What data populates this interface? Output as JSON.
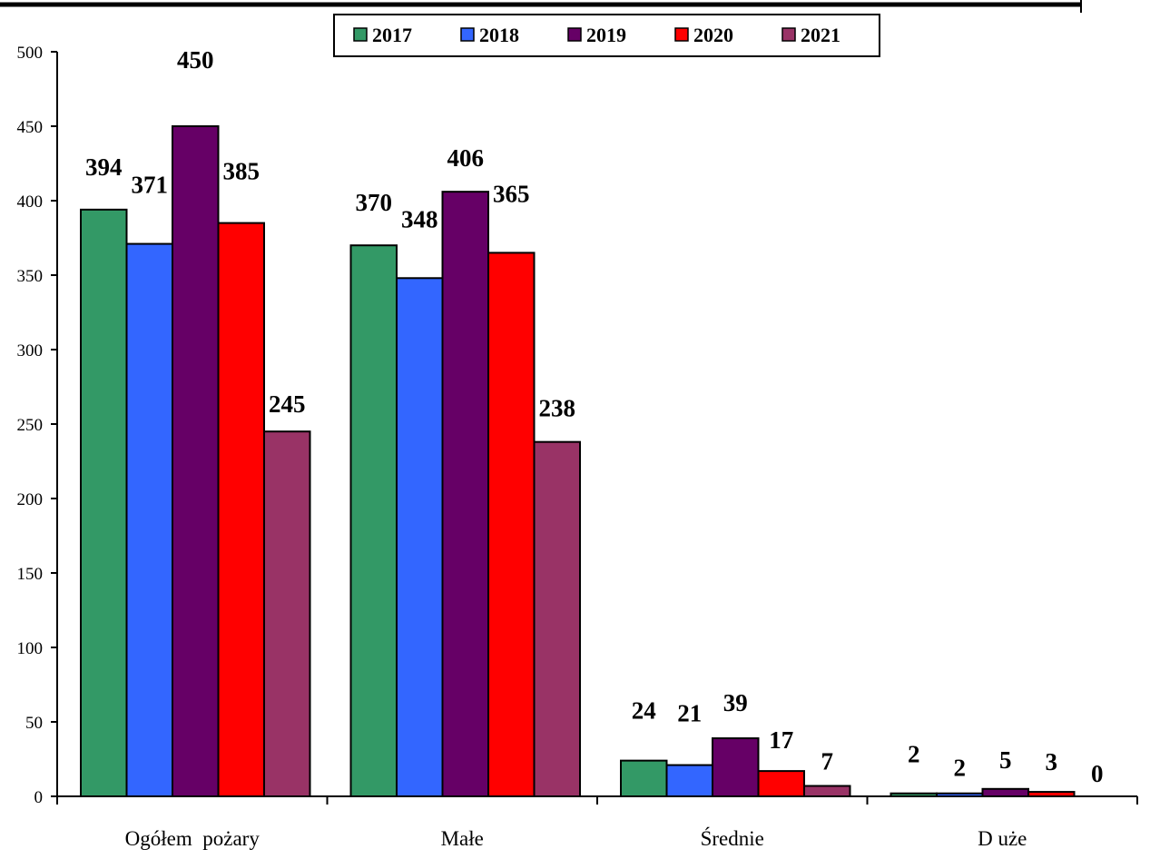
{
  "chart_data": {
    "type": "bar",
    "categories": [
      "Ogółem  pożary",
      "Małe",
      "Średnie",
      "D uże"
    ],
    "series": [
      {
        "name": "2017",
        "color": "#339966",
        "values": [
          394,
          370,
          24,
          2
        ]
      },
      {
        "name": "2018",
        "color": "#3366FF",
        "values": [
          371,
          348,
          21,
          2
        ]
      },
      {
        "name": "2019",
        "color": "#660066",
        "values": [
          450,
          406,
          39,
          5
        ]
      },
      {
        "name": "2020",
        "color": "#FF0000",
        "values": [
          385,
          365,
          17,
          3
        ]
      },
      {
        "name": "2021",
        "color": "#993366",
        "values": [
          245,
          238,
          7,
          0
        ]
      }
    ],
    "ylim": [
      0,
      500
    ],
    "yticks": [
      "0",
      "50",
      "100",
      "150",
      "200",
      "250",
      "300",
      "350",
      "400",
      "450",
      "500"
    ],
    "title": "",
    "xlabel": "",
    "ylabel": "",
    "grid": false,
    "legend_position": "top-center",
    "data_labels": true
  }
}
